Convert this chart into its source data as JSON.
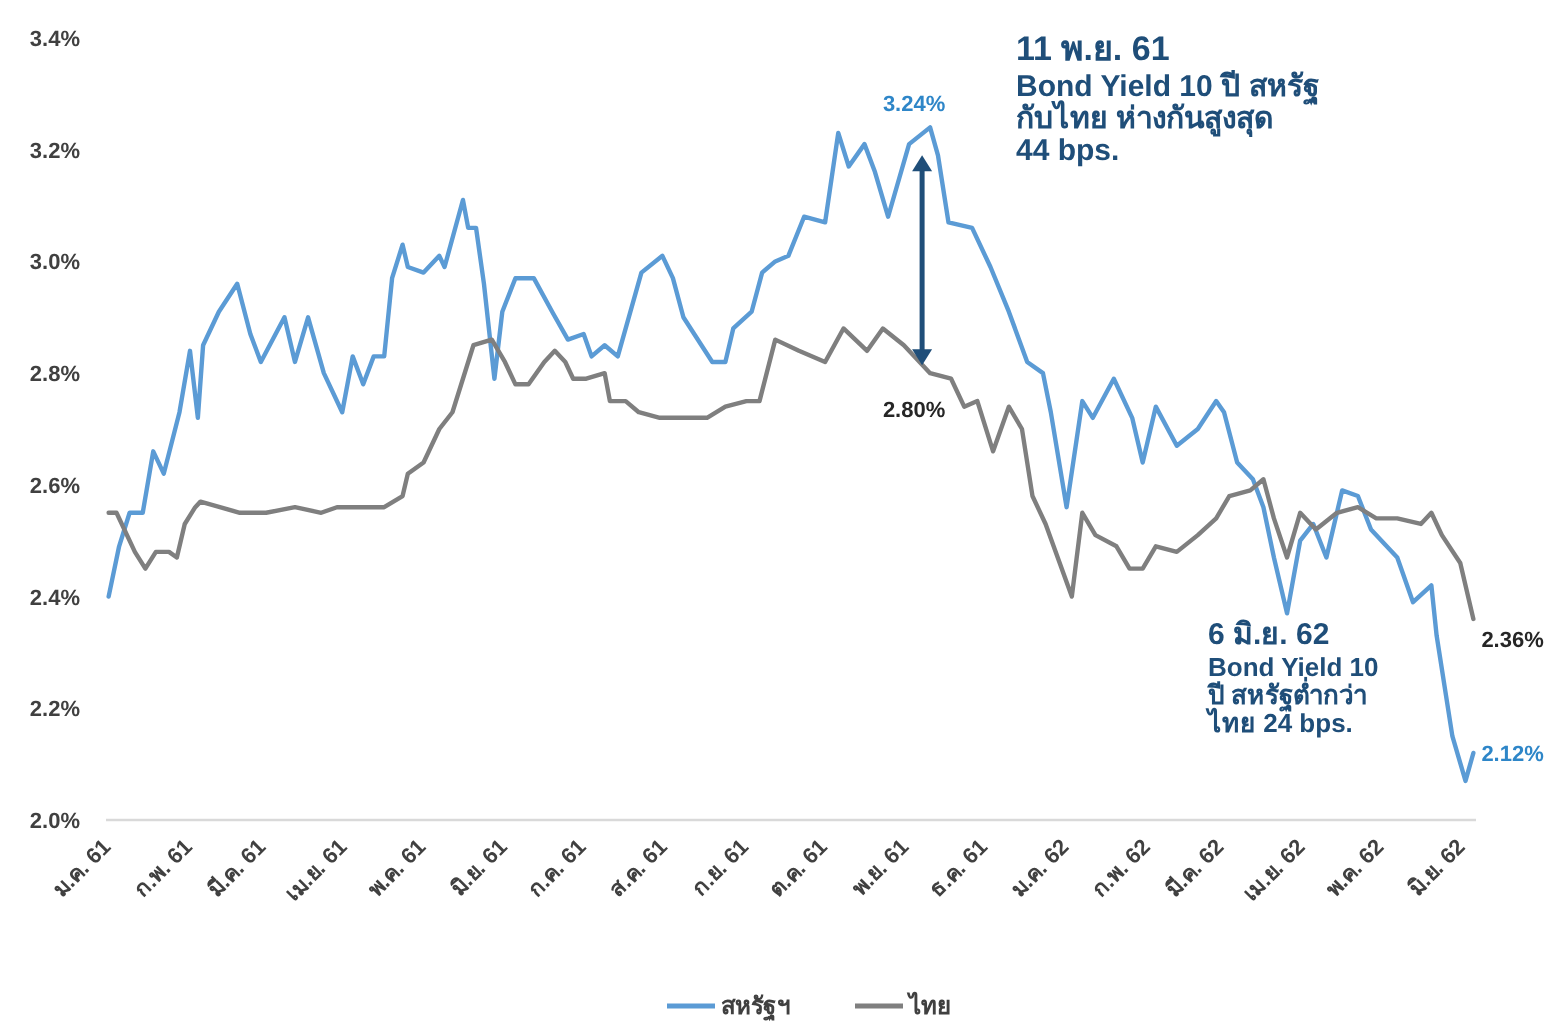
{
  "chart_data": {
    "type": "line",
    "xlim": [
      "2561-01-01",
      "2562-06-07"
    ],
    "xticks": [
      {
        "value": "2561-01-01",
        "label": "ม.ค. 61"
      },
      {
        "value": "2561-02-01",
        "label": "ก.พ. 61"
      },
      {
        "value": "2561-03-01",
        "label": "มี.ค. 61"
      },
      {
        "value": "2561-04-01",
        "label": "เม.ย. 61"
      },
      {
        "value": "2561-05-01",
        "label": "พ.ค. 61"
      },
      {
        "value": "2561-06-01",
        "label": "มิ.ย. 61"
      },
      {
        "value": "2561-07-01",
        "label": "ก.ค. 61"
      },
      {
        "value": "2561-08-01",
        "label": "ส.ค. 61"
      },
      {
        "value": "2561-09-01",
        "label": "ก.ย. 61"
      },
      {
        "value": "2561-10-01",
        "label": "ต.ค. 61"
      },
      {
        "value": "2561-11-01",
        "label": "พ.ย. 61"
      },
      {
        "value": "2561-12-01",
        "label": "ธ.ค. 61"
      },
      {
        "value": "2562-01-01",
        "label": "ม.ค. 62"
      },
      {
        "value": "2562-02-01",
        "label": "ก.พ. 62"
      },
      {
        "value": "2562-03-01",
        "label": "มี.ค. 62"
      },
      {
        "value": "2562-04-01",
        "label": "เม.ย. 62"
      },
      {
        "value": "2562-05-01",
        "label": "พ.ค. 62"
      },
      {
        "value": "2562-06-01",
        "label": "มิ.ย. 62"
      }
    ],
    "ylim": [
      2.0,
      3.4
    ],
    "yticks": [
      {
        "value": 2.0,
        "label": "2.0%"
      },
      {
        "value": 2.2,
        "label": "2.2%"
      },
      {
        "value": 2.4,
        "label": "2.4%"
      },
      {
        "value": 2.6,
        "label": "2.6%"
      },
      {
        "value": 2.8,
        "label": "2.8%"
      },
      {
        "value": 3.0,
        "label": "3.0%"
      },
      {
        "value": 3.2,
        "label": "3.2%"
      },
      {
        "value": 3.4,
        "label": "3.4%"
      }
    ],
    "grid": false,
    "legend": "bottom",
    "marker": "none",
    "line_style": "solid",
    "series": [
      {
        "name": "สหรัฐฯ",
        "color": "#5b9bd5",
        "x": [
          "2561-01-02",
          "2561-01-06",
          "2561-01-10",
          "2561-01-15",
          "2561-01-19",
          "2561-01-23",
          "2561-01-29",
          "2561-02-02",
          "2561-02-05",
          "2561-02-07",
          "2561-02-13",
          "2561-02-20",
          "2561-02-25",
          "2561-03-01",
          "2561-03-10",
          "2561-03-14",
          "2561-03-19",
          "2561-03-25",
          "2561-04-01",
          "2561-04-05",
          "2561-04-09",
          "2561-04-13",
          "2561-04-17",
          "2561-04-20",
          "2561-04-24",
          "2561-04-26",
          "2561-05-02",
          "2561-05-08",
          "2561-05-10",
          "2561-05-17",
          "2561-05-19",
          "2561-05-22",
          "2561-05-25",
          "2561-05-29",
          "2561-06-01",
          "2561-06-06",
          "2561-06-13",
          "2561-06-20",
          "2561-06-26",
          "2561-07-02",
          "2561-07-05",
          "2561-07-10",
          "2561-07-15",
          "2561-07-24",
          "2561-08-01",
          "2561-08-05",
          "2561-08-09",
          "2561-08-20",
          "2561-08-25",
          "2561-08-28",
          "2561-09-04",
          "2561-09-08",
          "2561-09-13",
          "2561-09-18",
          "2561-09-24",
          "2561-10-02",
          "2561-10-07",
          "2561-10-11",
          "2561-10-17",
          "2561-10-21",
          "2561-10-26",
          "2561-11-03",
          "2561-11-11",
          "2561-11-14",
          "2561-11-18",
          "2561-11-27",
          "2561-12-04",
          "2561-12-11",
          "2561-12-18",
          "2561-12-24",
          "2561-12-27",
          "2562-01-02",
          "2562-01-08",
          "2562-01-12",
          "2562-01-20",
          "2562-01-27",
          "2562-01-31",
          "2562-02-05",
          "2562-02-13",
          "2562-02-21",
          "2562-02-28",
          "2562-03-03",
          "2562-03-08",
          "2562-03-14",
          "2562-03-18",
          "2562-03-22",
          "2562-03-27",
          "2562-04-01",
          "2562-04-06",
          "2562-04-11",
          "2562-04-17",
          "2562-04-23",
          "2562-04-28",
          "2562-05-02",
          "2562-05-08",
          "2562-05-14",
          "2562-05-21",
          "2562-05-23",
          "2562-05-29",
          "2562-06-03",
          "2562-06-06"
        ],
        "values": [
          2.4,
          2.49,
          2.55,
          2.55,
          2.66,
          2.62,
          2.73,
          2.84,
          2.72,
          2.85,
          2.91,
          2.96,
          2.87,
          2.82,
          2.9,
          2.82,
          2.9,
          2.8,
          2.73,
          2.83,
          2.78,
          2.83,
          2.83,
          2.97,
          3.03,
          2.99,
          2.98,
          3.01,
          2.99,
          3.11,
          3.06,
          3.06,
          2.96,
          2.79,
          2.91,
          2.97,
          2.97,
          2.91,
          2.86,
          2.87,
          2.83,
          2.85,
          2.83,
          2.98,
          3.01,
          2.97,
          2.9,
          2.82,
          2.82,
          2.88,
          2.91,
          2.98,
          3.0,
          3.01,
          3.08,
          3.07,
          3.23,
          3.17,
          3.21,
          3.16,
          3.08,
          3.21,
          3.24,
          3.19,
          3.07,
          3.06,
          2.99,
          2.91,
          2.82,
          2.8,
          2.73,
          2.56,
          2.75,
          2.72,
          2.79,
          2.72,
          2.64,
          2.74,
          2.67,
          2.7,
          2.75,
          2.73,
          2.64,
          2.61,
          2.56,
          2.47,
          2.37,
          2.5,
          2.53,
          2.47,
          2.59,
          2.58,
          2.52,
          2.5,
          2.47,
          2.39,
          2.42,
          2.33,
          2.15,
          2.07,
          2.12
        ]
      },
      {
        "name": "ไทย",
        "color": "#7f7f7f",
        "x": [
          "2561-01-02",
          "2561-01-05",
          "2561-01-12",
          "2561-01-16",
          "2561-01-20",
          "2561-01-25",
          "2561-01-28",
          "2561-01-31",
          "2561-02-04",
          "2561-02-06",
          "2561-02-21",
          "2561-03-03",
          "2561-03-14",
          "2561-03-24",
          "2561-03-30",
          "2561-04-17",
          "2561-04-24",
          "2561-04-26",
          "2561-05-02",
          "2561-05-08",
          "2561-05-13",
          "2561-05-17",
          "2561-05-21",
          "2561-05-28",
          "2561-06-02",
          "2561-06-06",
          "2561-06-11",
          "2561-06-17",
          "2561-06-21",
          "2561-06-25",
          "2561-06-28",
          "2561-07-03",
          "2561-07-10",
          "2561-07-12",
          "2561-07-18",
          "2561-07-23",
          "2561-07-31",
          "2561-08-10",
          "2561-08-18",
          "2561-08-25",
          "2561-09-02",
          "2561-09-07",
          "2561-09-13",
          "2561-09-22",
          "2561-10-02",
          "2561-10-09",
          "2561-10-18",
          "2561-10-24",
          "2561-11-01",
          "2561-11-07",
          "2561-11-11",
          "2561-11-19",
          "2561-11-24",
          "2561-11-29",
          "2561-12-05",
          "2561-12-11",
          "2561-12-16",
          "2561-12-20",
          "2561-12-25",
          "2562-01-04",
          "2562-01-08",
          "2562-01-13",
          "2562-01-21",
          "2562-01-26",
          "2562-01-31",
          "2562-02-05",
          "2562-02-13",
          "2562-02-21",
          "2562-02-28",
          "2562-03-05",
          "2562-03-13",
          "2562-03-18",
          "2562-03-22",
          "2562-03-27",
          "2562-04-01",
          "2562-04-07",
          "2562-04-15",
          "2562-04-23",
          "2562-04-30",
          "2562-05-08",
          "2562-05-17",
          "2562-05-21",
          "2562-05-25",
          "2562-06-01",
          "2562-06-06"
        ],
        "values": [
          2.55,
          2.55,
          2.48,
          2.45,
          2.48,
          2.48,
          2.47,
          2.53,
          2.56,
          2.57,
          2.55,
          2.55,
          2.56,
          2.55,
          2.56,
          2.56,
          2.58,
          2.62,
          2.64,
          2.7,
          2.73,
          2.79,
          2.85,
          2.86,
          2.82,
          2.78,
          2.78,
          2.82,
          2.84,
          2.82,
          2.79,
          2.79,
          2.8,
          2.75,
          2.75,
          2.73,
          2.72,
          2.72,
          2.72,
          2.74,
          2.75,
          2.75,
          2.86,
          2.84,
          2.82,
          2.88,
          2.84,
          2.88,
          2.85,
          2.82,
          2.8,
          2.79,
          2.74,
          2.75,
          2.66,
          2.74,
          2.7,
          2.58,
          2.53,
          2.4,
          2.55,
          2.51,
          2.49,
          2.45,
          2.45,
          2.49,
          2.48,
          2.51,
          2.54,
          2.58,
          2.59,
          2.61,
          2.54,
          2.47,
          2.55,
          2.52,
          2.55,
          2.56,
          2.54,
          2.54,
          2.53,
          2.55,
          2.51,
          2.46,
          2.36
        ]
      }
    ],
    "annotations": [
      {
        "text": "3.24%",
        "x": "2561-11-11",
        "y": 3.24
      },
      {
        "text": "2.80%",
        "x": "2561-11-11",
        "y": 2.8
      },
      {
        "text": "2.36%",
        "x": "2562-06-06",
        "y": 2.36
      },
      {
        "text": "2.12%",
        "x": "2562-06-06",
        "y": 2.12
      },
      "11 พ.ย. 61\nBond Yield 10 ปี สหรัฐ\nกับไทย ห่างกันสูงสุด\n44 bps.",
      "6 มิ.ย. 62\nBond Yield 10\nปี สหรัฐต่ำกว่า\nไทย 24 bps."
    ]
  }
}
